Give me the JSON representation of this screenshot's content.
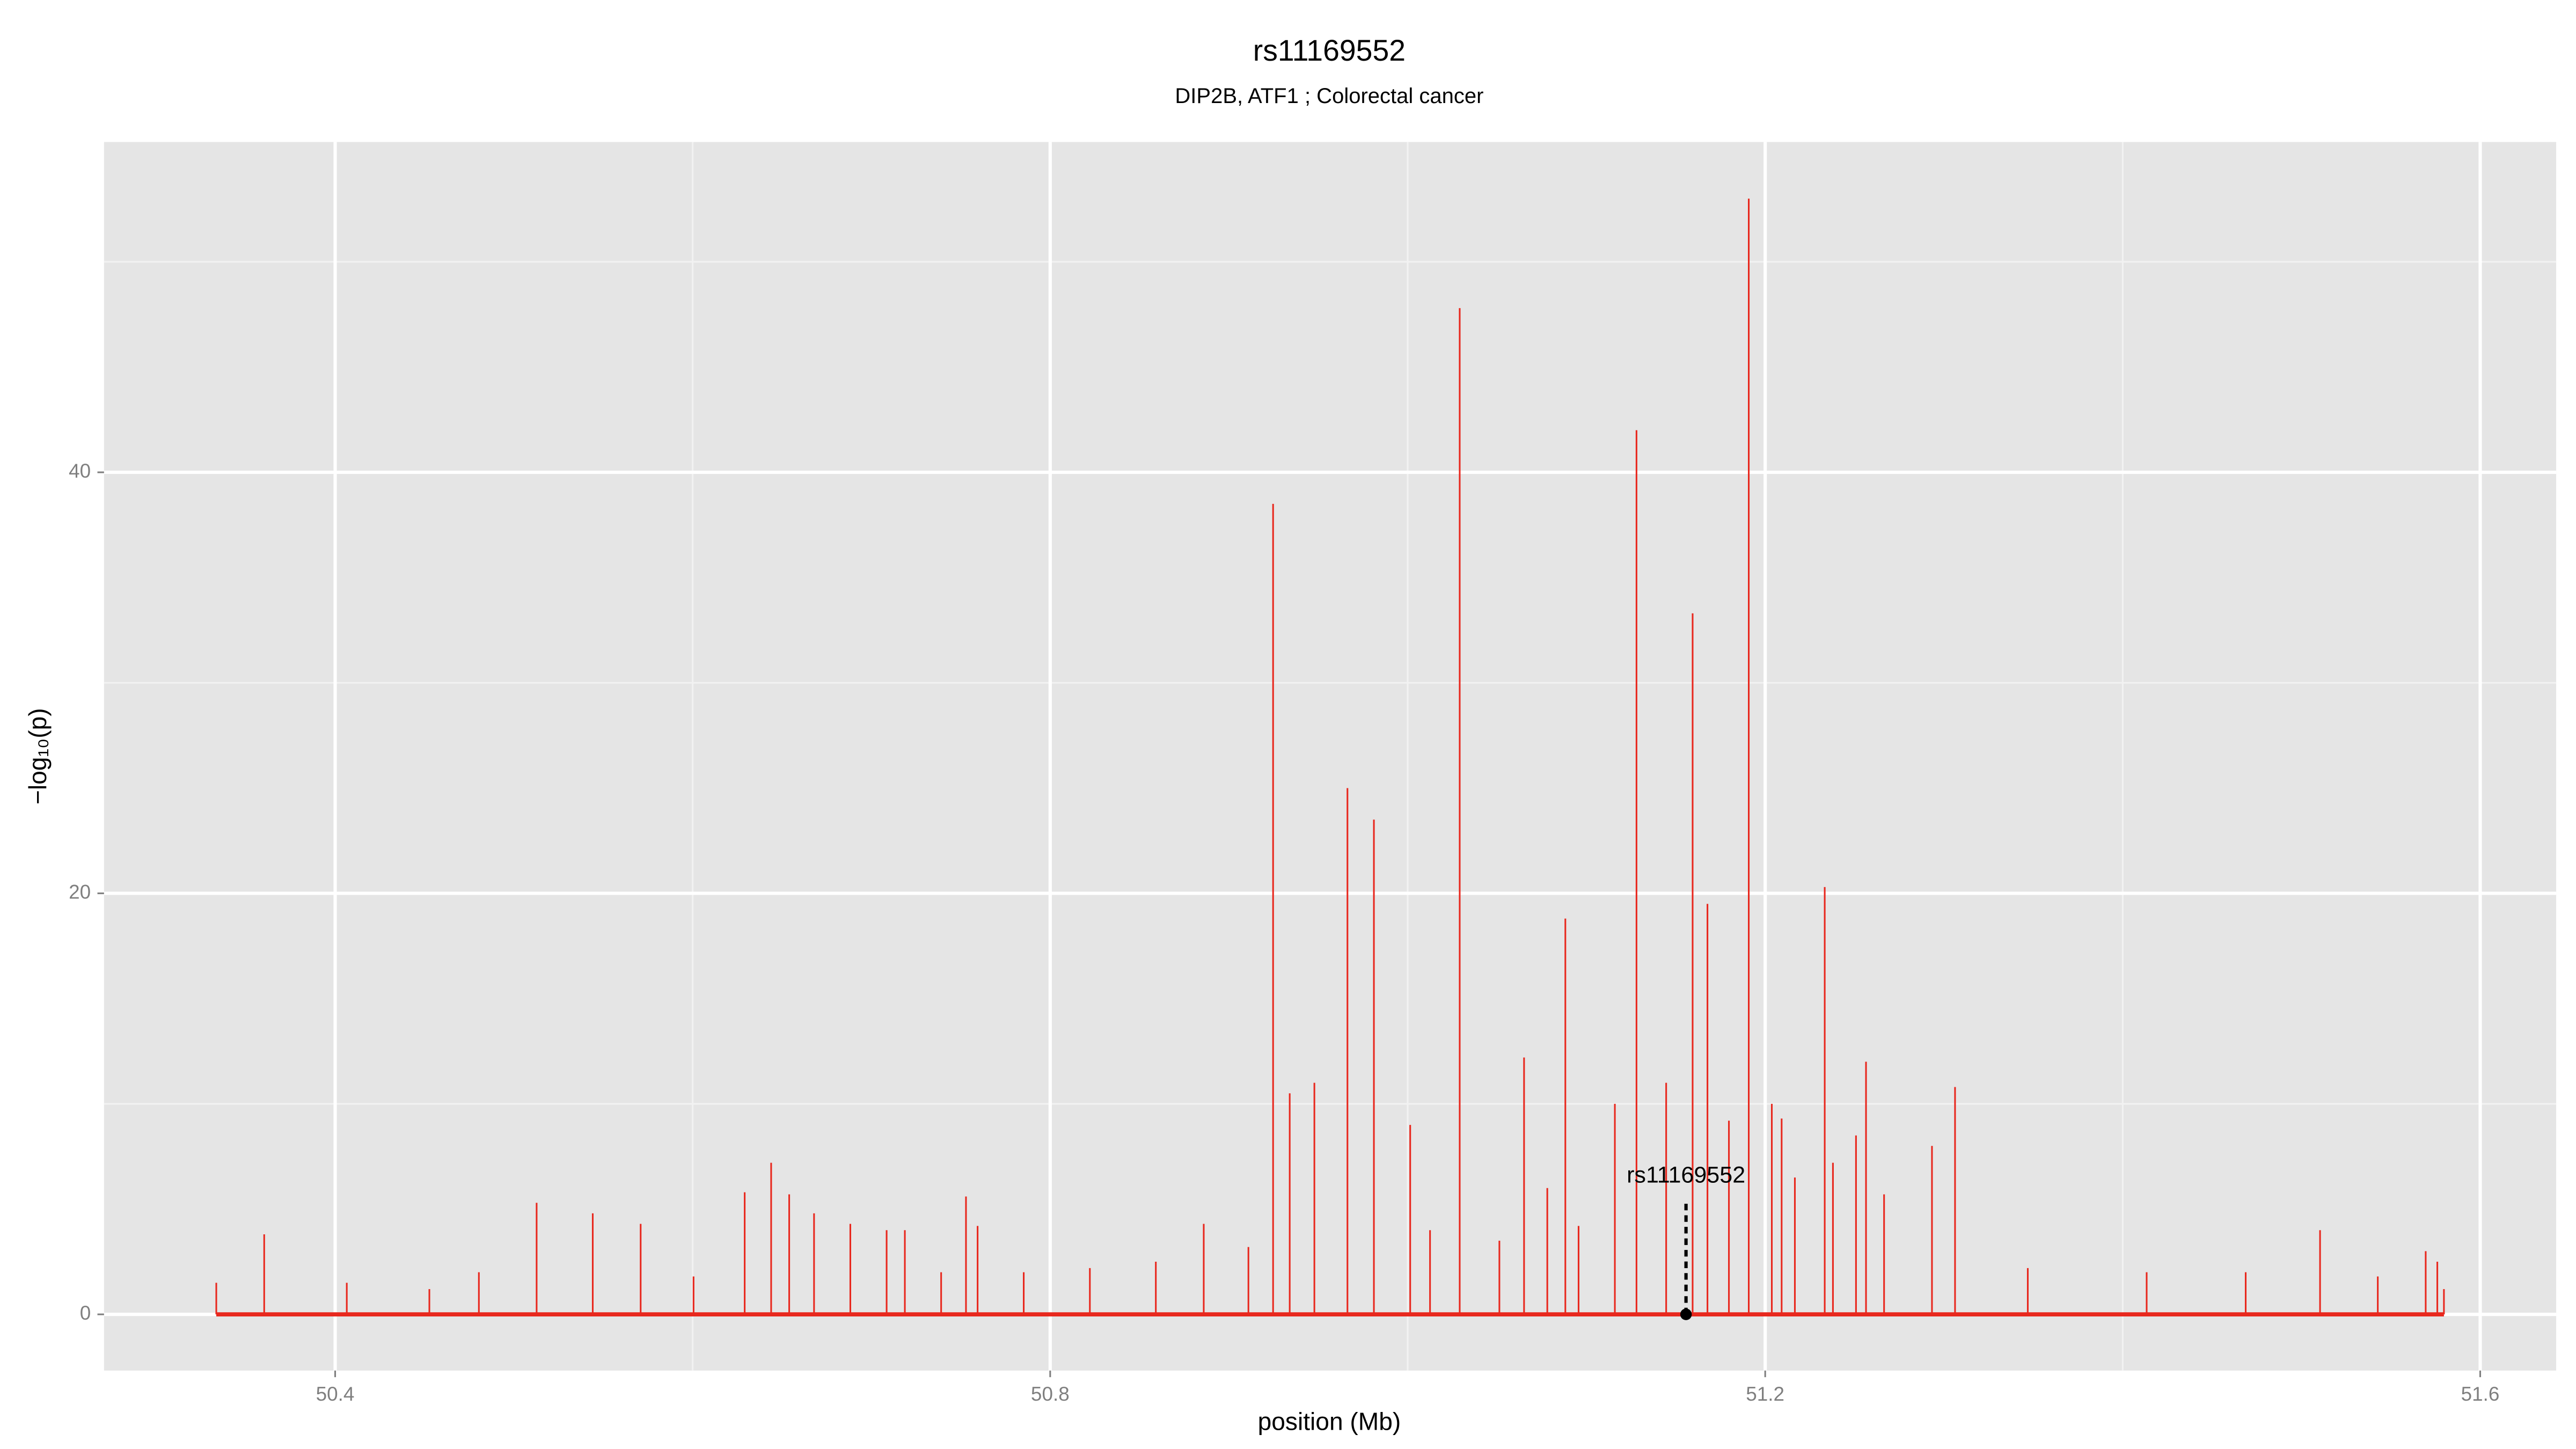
{
  "chart_data": {
    "type": "spike",
    "title": "rs11169552",
    "subtitle": "DIP2B, ATF1 ; Colorectal cancer",
    "x_label": "position (Mb)",
    "y_label": "−log₁₀(p)",
    "xlim": [
      50.2707,
      51.6425
    ],
    "ylim": [
      -2.67,
      55.69
    ],
    "xticks": [
      50.4,
      50.8,
      51.2,
      51.6
    ],
    "yticks": [
      0,
      20,
      40
    ],
    "grid": true,
    "color": "#e8281e",
    "x": [
      50.3335,
      50.3603,
      50.4065,
      50.4527,
      50.4804,
      50.5127,
      50.5441,
      50.5709,
      50.6005,
      50.6291,
      50.6439,
      50.654,
      50.6679,
      50.6882,
      50.7085,
      50.7187,
      50.739,
      50.7529,
      50.7594,
      50.7852,
      50.8222,
      50.8591,
      50.8859,
      50.9109,
      50.9247,
      50.934,
      50.9478,
      50.9663,
      50.9811,
      51.0014,
      51.0125,
      51.0291,
      51.0513,
      51.0651,
      51.0781,
      51.0882,
      51.0956,
      51.1159,
      51.128,
      51.1446,
      51.1594,
      51.1677,
      51.1797,
      51.1908,
      51.2037,
      51.2092,
      51.2166,
      51.2333,
      51.2379,
      51.2508,
      51.2564,
      51.2665,
      51.2933,
      51.3062,
      51.3469,
      51.4134,
      51.4688,
      51.5104,
      51.5427,
      51.5695,
      51.576,
      51.5797
    ],
    "values": [
      1.5,
      3.8,
      1.5,
      1.2,
      2,
      5.3,
      4.8,
      4.3,
      1.8,
      5.8,
      7.2,
      5.7,
      4.8,
      4.3,
      4,
      4,
      2,
      5.6,
      4.2,
      2,
      2.2,
      2.5,
      4.3,
      3.2,
      38.5,
      10.5,
      11,
      25,
      23.5,
      9,
      4,
      47.8,
      3.5,
      12.2,
      6,
      18.8,
      4.2,
      10,
      42,
      11,
      33.3,
      19.5,
      9.2,
      53,
      10,
      9.3,
      6.5,
      20.3,
      7.2,
      8.5,
      12,
      5.7,
      8,
      10.8,
      2.2,
      2,
      2,
      4,
      1.8,
      3,
      2.5,
      1.2
    ],
    "annotation": {
      "label": "rs11169552",
      "x": 51.1557,
      "y": 5.3
    }
  }
}
